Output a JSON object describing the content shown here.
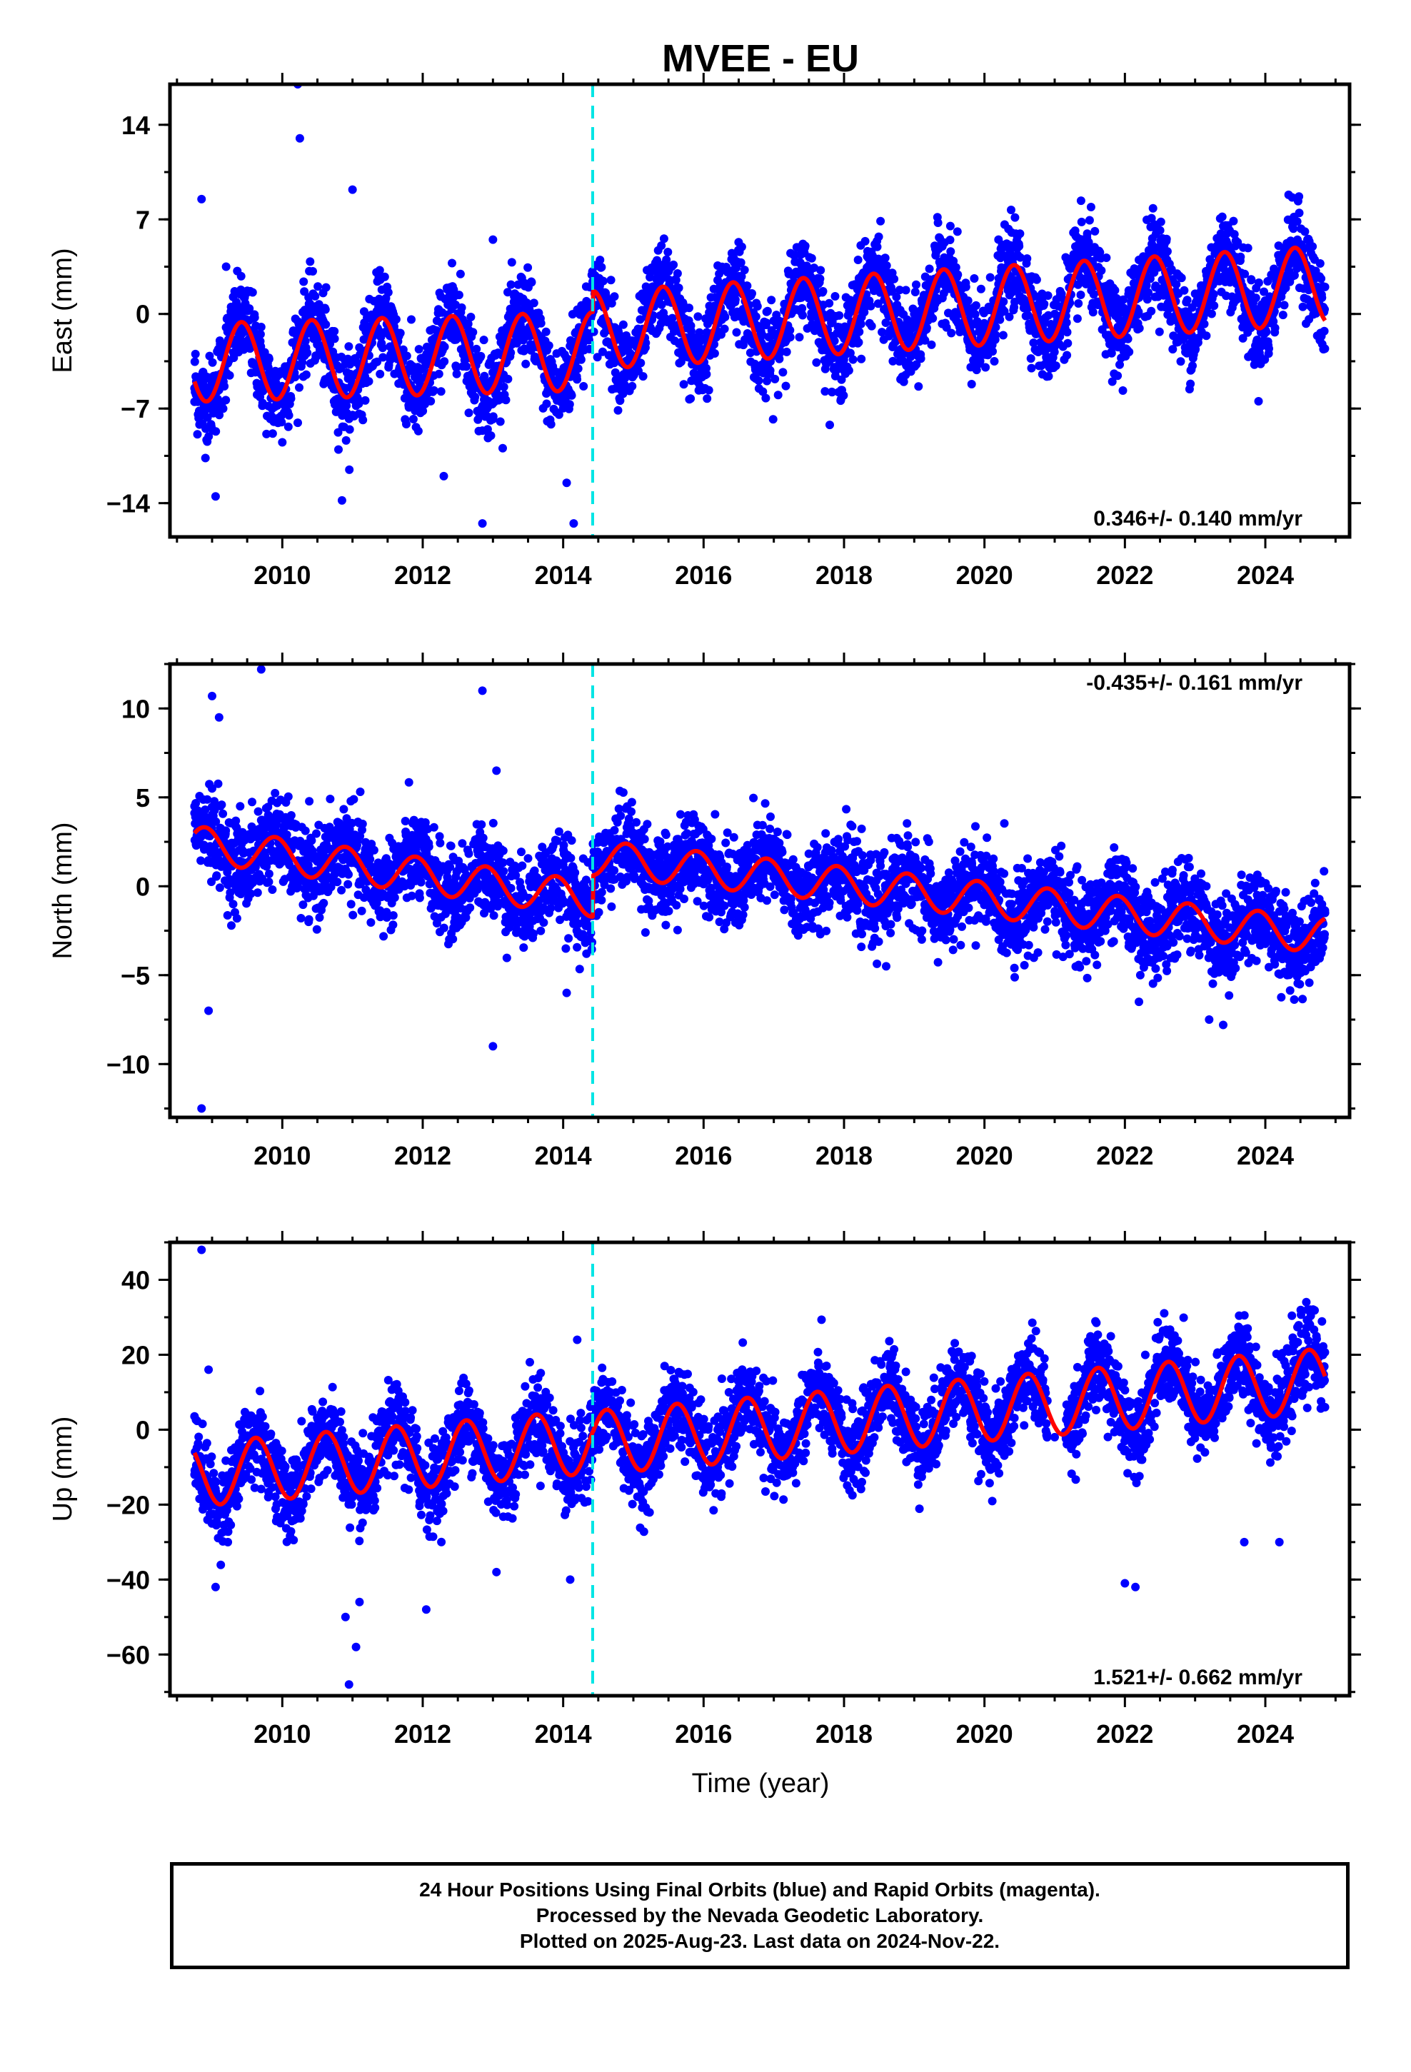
{
  "title": "MVEE - EU",
  "colors": {
    "data_points": "#0000ff",
    "fit_line": "#ff0000",
    "event_line": "#00e5e5",
    "frame": "#000000"
  },
  "chart_data": [
    {
      "type": "scatter",
      "panel": "east",
      "title": "MVEE - EU",
      "xlabel": "",
      "ylabel": "East (mm)",
      "xlim": [
        2008.4,
        2025.2
      ],
      "ylim": [
        -16.5,
        17
      ],
      "x_ticks": [
        "2010",
        "2012",
        "2014",
        "2016",
        "2018",
        "2020",
        "2022",
        "2024"
      ],
      "y_ticks": [
        "14",
        "7",
        "0",
        "-7",
        "-14"
      ],
      "velocity_label": "0.346+/- 0.140 mm/yr",
      "velocity_label_position": "bottom-right",
      "event_line_x": 2014.42,
      "series": [
        {
          "values_description_free": true,
          "kind": "points",
          "x": [
            2008.75,
            2009.0,
            2009.4,
            2009.8,
            2010.2,
            2010.6,
            2011.0,
            2011.4,
            2011.8,
            2012.2,
            2012.6,
            2013.0,
            2013.4,
            2013.8,
            2014.2,
            2014.6,
            2015.0,
            2015.4,
            2015.8,
            2016.2,
            2016.6,
            2017.0,
            2017.4,
            2017.8,
            2018.2,
            2018.6,
            2019.0,
            2019.4,
            2019.8,
            2020.2,
            2020.6,
            2021.0,
            2021.4,
            2021.8,
            2022.2,
            2022.6,
            2023.0,
            2023.4,
            2023.8,
            2024.2,
            2024.6,
            2024.85
          ],
          "y": [
            -6.5,
            -6.0,
            -1.0,
            -5.5,
            -1.5,
            -5.0,
            -4.5,
            0.0,
            -5.5,
            -3.0,
            -2.0,
            -5.0,
            1.0,
            -4.5,
            -2.0,
            0.5,
            -2.0,
            3.0,
            -1.0,
            2.5,
            2.0,
            -1.5,
            3.5,
            0.0,
            4.0,
            1.5,
            0.0,
            5.0,
            0.0,
            5.5,
            2.0,
            0.0,
            5.5,
            1.5,
            4.0,
            4.0,
            1.5,
            6.5,
            2.5,
            4.0,
            5.5,
            2.0
          ]
        },
        {
          "kind": "outliers",
          "x": [
            2008.85,
            2009.05,
            2009.2,
            2010.0,
            2010.22,
            2010.25,
            2010.85,
            2011.0,
            2012.3,
            2012.85,
            2013.0,
            2014.05,
            2014.15
          ],
          "y": [
            8.5,
            -13.5,
            3.5,
            -9.5,
            17.0,
            13.0,
            -13.8,
            9.2,
            -12.0,
            -15.5,
            5.5,
            -12.5,
            -15.5
          ]
        }
      ],
      "trend": {
        "amplitude": 2.9,
        "phase_peak_frac": 0.42,
        "pre_event": {
          "offset": -3.6,
          "slope": 0.15
        },
        "post_event": {
          "offset": -1.2,
          "slope": 0.32
        },
        "x_start": 2008.75,
        "x_end": 2024.85
      }
    },
    {
      "type": "scatter",
      "panel": "north",
      "xlabel": "",
      "ylabel": "North (mm)",
      "xlim": [
        2008.4,
        2025.2
      ],
      "ylim": [
        -13,
        12.5
      ],
      "x_ticks": [
        "2010",
        "2012",
        "2014",
        "2016",
        "2018",
        "2020",
        "2022",
        "2024"
      ],
      "y_ticks": [
        "10",
        "5",
        "0",
        "-5",
        "-10"
      ],
      "velocity_label": "-0.435+/- 0.161 mm/yr",
      "velocity_label_position": "top-right",
      "event_line_x": 2014.42,
      "series": [
        {
          "kind": "points",
          "x": [
            2008.75,
            2009.0,
            2009.4,
            2009.8,
            2010.2,
            2010.6,
            2011.0,
            2011.4,
            2011.8,
            2012.2,
            2012.6,
            2013.0,
            2013.4,
            2013.8,
            2014.2,
            2014.6,
            2015.0,
            2015.4,
            2015.8,
            2016.2,
            2016.6,
            2017.0,
            2017.4,
            2017.8,
            2018.2,
            2018.6,
            2019.0,
            2019.4,
            2019.8,
            2020.2,
            2020.6,
            2021.0,
            2021.4,
            2021.8,
            2022.2,
            2022.6,
            2023.0,
            2023.4,
            2023.8,
            2024.2,
            2024.6,
            2024.85
          ],
          "y": [
            4.5,
            5.5,
            4.5,
            4.0,
            1.0,
            1.5,
            2.5,
            0.5,
            1.5,
            0.0,
            0.5,
            -1.0,
            -0.5,
            -1.5,
            -1.0,
            1.5,
            1.5,
            0.5,
            1.0,
            0.0,
            1.0,
            0.5,
            -0.5,
            0.5,
            -1.0,
            0.0,
            0.5,
            -1.0,
            0.5,
            -1.5,
            -0.5,
            -0.5,
            -2.0,
            -1.0,
            -2.5,
            -1.5,
            -2.0,
            -3.0,
            -2.0,
            -3.0,
            -2.5,
            -1.5
          ]
        },
        {
          "kind": "outliers",
          "x": [
            2008.85,
            2008.95,
            2009.0,
            2009.1,
            2009.7,
            2012.85,
            2013.0,
            2013.05,
            2014.05,
            2018.6,
            2022.2,
            2023.2,
            2023.4
          ],
          "y": [
            -12.5,
            -7.0,
            10.7,
            9.5,
            12.2,
            11.0,
            -9.0,
            6.5,
            -6.0,
            -4.5,
            -6.5,
            -7.5,
            -7.8
          ]
        }
      ],
      "trend": {
        "amplitude": 1.0,
        "phase_peak_frac": 0.9,
        "pre_event": {
          "offset": 2.4,
          "slope": -0.55
        },
        "post_event": {
          "offset": 1.6,
          "slope": -0.42
        },
        "x_start": 2008.75,
        "x_end": 2024.85
      }
    },
    {
      "type": "scatter",
      "panel": "up",
      "xlabel": "Time (year)",
      "ylabel": "Up (mm)",
      "xlim": [
        2008.4,
        2025.2
      ],
      "ylim": [
        -71,
        50
      ],
      "x_ticks": [
        "2010",
        "2012",
        "2014",
        "2016",
        "2018",
        "2020",
        "2022",
        "2024"
      ],
      "y_ticks": [
        "40",
        "20",
        "0",
        "-20",
        "-40",
        "-60"
      ],
      "velocity_label": "1.521+/- 0.662 mm/yr",
      "velocity_label_position": "bottom-right",
      "event_line_x": 2014.42,
      "series": [
        {
          "kind": "points",
          "x": [
            2008.75,
            2009.0,
            2009.4,
            2009.8,
            2010.2,
            2010.6,
            2011.0,
            2011.4,
            2011.8,
            2012.2,
            2012.6,
            2013.0,
            2013.4,
            2013.8,
            2014.2,
            2014.6,
            2015.0,
            2015.4,
            2015.8,
            2016.2,
            2016.6,
            2017.0,
            2017.4,
            2017.8,
            2018.2,
            2018.6,
            2019.0,
            2019.4,
            2019.8,
            2020.2,
            2020.6,
            2021.0,
            2021.4,
            2021.8,
            2022.2,
            2022.6,
            2023.0,
            2023.4,
            2023.8,
            2024.2,
            2024.6,
            2024.85
          ],
          "y": [
            -12,
            -20,
            -5,
            -18,
            -8,
            -12,
            -18,
            -3,
            -16,
            -8,
            0,
            -15,
            0,
            -10,
            -8,
            3,
            -10,
            5,
            -6,
            0,
            6,
            -5,
            8,
            -3,
            2,
            10,
            -4,
            10,
            -2,
            6,
            10,
            -2,
            12,
            2,
            6,
            14,
            2,
            16,
            6,
            10,
            18,
            6
          ]
        },
        {
          "kind": "outliers",
          "x": [
            2008.85,
            2008.95,
            2009.05,
            2010.9,
            2010.95,
            2011.05,
            2011.1,
            2012.05,
            2013.05,
            2014.1,
            2014.2,
            2022.0,
            2022.15,
            2023.7,
            2024.2,
            2024.6
          ],
          "y": [
            48,
            16,
            -42,
            -50,
            -68,
            -58,
            -46,
            -48,
            -38,
            -40,
            24,
            -41,
            -42,
            -30,
            -30,
            32
          ]
        }
      ],
      "trend": {
        "amplitude": 8.5,
        "phase_peak_frac": 0.62,
        "pre_event": {
          "offset": -12.0,
          "slope": 1.55
        },
        "post_event": {
          "offset": -3.5,
          "slope": 1.6
        },
        "x_start": 2008.75,
        "x_end": 2024.85
      }
    }
  ],
  "footer": {
    "line1": "24 Hour Positions Using Final Orbits (blue) and Rapid Orbits (magenta).",
    "line2": "Processed by the Nevada Geodetic Laboratory.",
    "line3": "Plotted on 2025-Aug-23. Last data on 2024-Nov-22."
  }
}
